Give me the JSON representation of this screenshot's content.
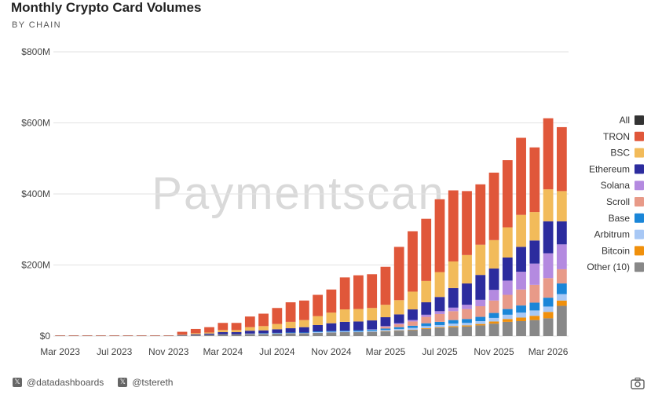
{
  "title": "Monthly Crypto Card Volumes",
  "subtitle": "BY CHAIN",
  "watermark": "Paymentscan",
  "footer": {
    "handle1": "@datadashboards",
    "handle2": "@tstereth"
  },
  "legend": [
    {
      "name": "All",
      "color": "#333333"
    },
    {
      "name": "TRON",
      "color": "#e0573a"
    },
    {
      "name": "BSC",
      "color": "#f2bb5a"
    },
    {
      "name": "Ethereum",
      "color": "#2c2c9e"
    },
    {
      "name": "Solana",
      "color": "#b48ae0"
    },
    {
      "name": "Scroll",
      "color": "#e89a88"
    },
    {
      "name": "Base",
      "color": "#1a86d8"
    },
    {
      "name": "Arbitrum",
      "color": "#a8c8f5"
    },
    {
      "name": "Bitcoin",
      "color": "#f0900c"
    },
    {
      "name": "Other (10)",
      "color": "#888888"
    }
  ],
  "chart_data": {
    "type": "bar",
    "stacked": true,
    "title": "Monthly Crypto Card Volumes",
    "subtitle": "BY CHAIN",
    "ylim": [
      0,
      800
    ],
    "y_ticks": [
      "$0",
      "$200M",
      "$400M",
      "$600M",
      "$800M"
    ],
    "y_unit": "$M",
    "x_tick_labels": [
      "Mar 2023",
      "Jul 2023",
      "Nov 2023",
      "Mar 2024",
      "Jul 2024",
      "Nov 2024",
      "Mar 2025",
      "Jul 2025",
      "Nov 2025",
      "Mar 2026"
    ],
    "grid": true,
    "legend_position": "right",
    "categories": [
      "Mar 2023",
      "Apr 2023",
      "May 2023",
      "Jun 2023",
      "Jul 2023",
      "Aug 2023",
      "Sep 2023",
      "Oct 2023",
      "Nov 2023",
      "Dec 2023",
      "Jan 2024",
      "Feb 2024",
      "Mar 2024",
      "Apr 2024",
      "May 2024",
      "Jun 2024",
      "Jul 2024",
      "Aug 2024",
      "Sep 2024",
      "Oct 2024",
      "Nov 2024",
      "Dec 2024",
      "Jan 2025",
      "Feb 2025",
      "Mar 2025",
      "Apr 2025",
      "May 2025",
      "Jun 2025",
      "Jul 2025",
      "Aug 2025",
      "Sep 2025",
      "Oct 2025",
      "Nov 2025",
      "Dec 2025",
      "Jan 2026",
      "Feb 2026",
      "Mar 2026",
      "Apr 2026"
    ],
    "series": [
      {
        "name": "Other (10)",
        "values": [
          1,
          1,
          1,
          1,
          1,
          1,
          1,
          1,
          1,
          2,
          3,
          4,
          5,
          5,
          6,
          6,
          7,
          8,
          8,
          9,
          10,
          11,
          11,
          12,
          13,
          15,
          17,
          20,
          23,
          25,
          27,
          30,
          35,
          40,
          42,
          45,
          50,
          85
        ]
      },
      {
        "name": "Bitcoin",
        "values": [
          0,
          0,
          0,
          0,
          0,
          0,
          0,
          0,
          0,
          0,
          0,
          0,
          0,
          0,
          0,
          0,
          0,
          0,
          0,
          0,
          0,
          0,
          0,
          0,
          1,
          1,
          1,
          2,
          2,
          3,
          3,
          4,
          6,
          8,
          10,
          12,
          18,
          15
        ]
      },
      {
        "name": "Arbitrum",
        "values": [
          0,
          0,
          0,
          0,
          0,
          0,
          0,
          0,
          0,
          0,
          0,
          0,
          0,
          0,
          1,
          1,
          1,
          1,
          1,
          2,
          2,
          2,
          2,
          3,
          3,
          4,
          5,
          6,
          6,
          7,
          7,
          8,
          10,
          12,
          14,
          15,
          15,
          18
        ]
      },
      {
        "name": "Base",
        "values": [
          0,
          0,
          0,
          0,
          0,
          0,
          0,
          0,
          0,
          0,
          0,
          0,
          0,
          0,
          0,
          1,
          1,
          1,
          1,
          2,
          2,
          2,
          3,
          3,
          4,
          5,
          6,
          8,
          9,
          10,
          11,
          12,
          14,
          16,
          20,
          22,
          25,
          30
        ]
      },
      {
        "name": "Scroll",
        "values": [
          0,
          0,
          0,
          0,
          0,
          0,
          0,
          0,
          0,
          0,
          0,
          0,
          0,
          0,
          0,
          0,
          0,
          0,
          0,
          0,
          0,
          0,
          0,
          0,
          5,
          8,
          12,
          18,
          22,
          25,
          28,
          30,
          35,
          40,
          45,
          50,
          55,
          40
        ]
      },
      {
        "name": "Solana",
        "values": [
          0,
          0,
          0,
          0,
          0,
          0,
          0,
          0,
          0,
          0,
          0,
          0,
          0,
          0,
          0,
          0,
          0,
          0,
          0,
          0,
          0,
          0,
          0,
          1,
          2,
          3,
          4,
          6,
          8,
          10,
          12,
          18,
          30,
          40,
          50,
          60,
          70,
          70
        ]
      },
      {
        "name": "Ethereum",
        "values": [
          0,
          0,
          0,
          0,
          0,
          0,
          0,
          0,
          0,
          1,
          2,
          3,
          6,
          6,
          8,
          8,
          10,
          12,
          15,
          18,
          22,
          25,
          25,
          25,
          25,
          25,
          30,
          35,
          40,
          55,
          60,
          70,
          60,
          65,
          70,
          65,
          90,
          65
        ]
      },
      {
        "name": "BSC",
        "values": [
          0,
          0,
          0,
          0,
          0,
          0,
          0,
          0,
          0,
          1,
          3,
          3,
          6,
          6,
          10,
          12,
          15,
          18,
          20,
          25,
          30,
          35,
          35,
          35,
          35,
          40,
          50,
          60,
          70,
          75,
          80,
          85,
          80,
          85,
          90,
          80,
          90,
          85
        ]
      },
      {
        "name": "TRON",
        "values": [
          1,
          1,
          1,
          1,
          1,
          1,
          1,
          1,
          1,
          8,
          12,
          15,
          20,
          20,
          30,
          35,
          45,
          55,
          55,
          60,
          65,
          90,
          95,
          95,
          107,
          150,
          170,
          175,
          205,
          200,
          180,
          170,
          190,
          189,
          217,
          182,
          200,
          180
        ]
      }
    ]
  }
}
